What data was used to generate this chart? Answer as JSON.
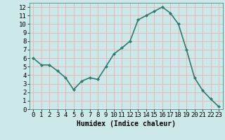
{
  "x": [
    0,
    1,
    2,
    3,
    4,
    5,
    6,
    7,
    8,
    9,
    10,
    11,
    12,
    13,
    14,
    15,
    16,
    17,
    18,
    19,
    20,
    21,
    22,
    23
  ],
  "y": [
    6.0,
    5.2,
    5.2,
    4.5,
    3.7,
    2.3,
    3.3,
    3.7,
    3.5,
    5.0,
    6.5,
    7.2,
    8.0,
    10.5,
    11.0,
    11.5,
    12.0,
    11.3,
    10.0,
    7.0,
    3.7,
    2.2,
    1.2,
    0.3
  ],
  "line_color": "#2e7d6e",
  "marker": "D",
  "marker_size": 2,
  "xlabel": "Humidex (Indice chaleur)",
  "xlim": [
    -0.5,
    23.5
  ],
  "ylim": [
    0,
    12.5
  ],
  "yticks": [
    0,
    1,
    2,
    3,
    4,
    5,
    6,
    7,
    8,
    9,
    10,
    11,
    12
  ],
  "xticks": [
    0,
    1,
    2,
    3,
    4,
    5,
    6,
    7,
    8,
    9,
    10,
    11,
    12,
    13,
    14,
    15,
    16,
    17,
    18,
    19,
    20,
    21,
    22,
    23
  ],
  "bg_color": "#cde8e8",
  "grid_color": "#e8b0b0",
  "line_width": 1.2,
  "xlabel_fontsize": 7,
  "tick_fontsize": 6.5
}
